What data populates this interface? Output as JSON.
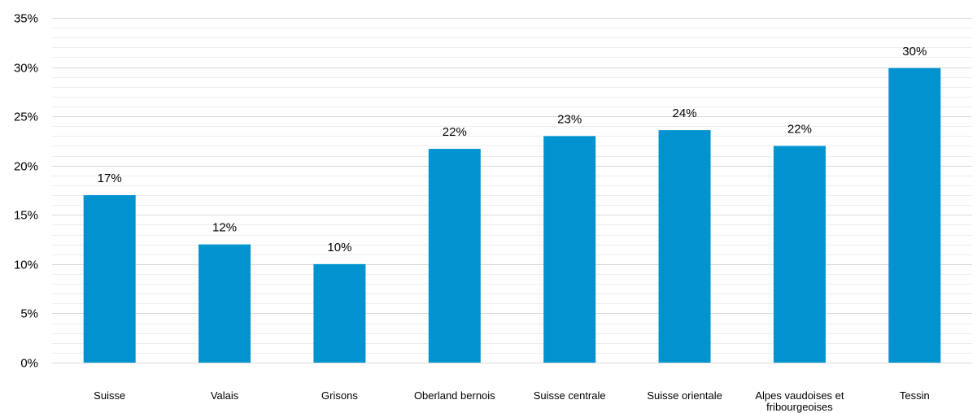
{
  "chart_data": {
    "type": "bar",
    "title": "",
    "xlabel": "",
    "ylabel": "",
    "categories": [
      [
        "Suisse"
      ],
      [
        "Valais"
      ],
      [
        "Grisons"
      ],
      [
        "Oberland bernois"
      ],
      [
        "Suisse centrale"
      ],
      [
        "Suisse orientale"
      ],
      [
        "Alpes vaudoises et",
        "fribourgeoises"
      ],
      [
        "Tessin"
      ]
    ],
    "values": [
      17,
      12,
      10,
      21.7,
      23,
      23.6,
      22,
      29.9
    ],
    "data_labels": [
      "17%",
      "12%",
      "10%",
      "22%",
      "23%",
      "24%",
      "22%",
      "30%"
    ],
    "ylim": [
      0,
      35
    ],
    "y_ticks": [
      0,
      5,
      10,
      15,
      20,
      25,
      30,
      35
    ],
    "y_tick_labels": [
      "0%",
      "5%",
      "10%",
      "15%",
      "20%",
      "25%",
      "30%",
      "35%"
    ],
    "minor_gridlines": true,
    "bar_color": "#0093D0",
    "grid_color": "#D9D9D9",
    "minor_grid_color": "#EDEDED"
  }
}
